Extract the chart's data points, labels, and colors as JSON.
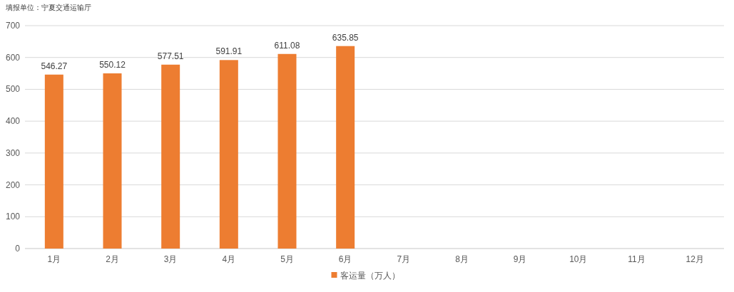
{
  "chart_data": {
    "type": "bar",
    "annotations": [
      "填报单位：宁夏交通运输厅"
    ],
    "categories": [
      "1月",
      "2月",
      "3月",
      "4月",
      "5月",
      "6月",
      "7月",
      "8月",
      "9月",
      "10月",
      "11月",
      "12月"
    ],
    "series": [
      {
        "name": "客运量（万人）",
        "color": "#ed7d31",
        "values": [
          546.27,
          550.12,
          577.51,
          591.91,
          611.08,
          635.85,
          null,
          null,
          null,
          null,
          null,
          null
        ]
      }
    ],
    "ylim": [
      0,
      700
    ],
    "yticks": [
      0,
      100,
      200,
      300,
      400,
      500,
      600,
      700
    ],
    "grid": "y",
    "legend": "bottom",
    "data_labels": true
  }
}
